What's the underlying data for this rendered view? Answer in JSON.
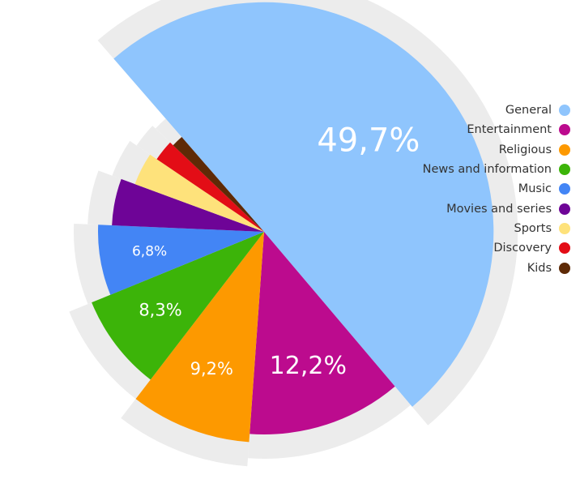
{
  "chart_data": {
    "type": "pie",
    "title": "",
    "categories": [
      "General",
      "Entertainment",
      "Religious",
      "News and information",
      "Music",
      "Movies and series",
      "Sports",
      "Discovery",
      "Kids"
    ],
    "values": [
      49.7,
      12.2,
      9.2,
      8.3,
      6.8,
      4.9,
      3.8,
      2.6,
      1.5
    ],
    "colors": [
      "#8fc5fd",
      "#bc0b8e",
      "#fd9900",
      "#3cb409",
      "#4385f5",
      "#6e0497",
      "#fee27b",
      "#e30d16",
      "#5e2a06"
    ],
    "data_labels": [
      "49,7%",
      "12,2%",
      "9,2%",
      "8,3%",
      "6,8%",
      "",
      "",
      "",
      ""
    ],
    "legend": {
      "placement": "right",
      "items": [
        {
          "label": "General",
          "color": "#8fc5fd"
        },
        {
          "label": "Entertainment",
          "color": "#bc0b8e"
        },
        {
          "label": "Religious",
          "color": "#fd9900"
        },
        {
          "label": "News and information",
          "color": "#3cb409"
        },
        {
          "label": "Music",
          "color": "#4385f5"
        },
        {
          "label": "Movies and series",
          "color": "#6e0497"
        },
        {
          "label": "Sports",
          "color": "#fee27b"
        },
        {
          "label": "Discovery",
          "color": "#e30d16"
        },
        {
          "label": "Kids",
          "color": "#5e2a06"
        }
      ]
    },
    "background_color": "#ececec"
  }
}
